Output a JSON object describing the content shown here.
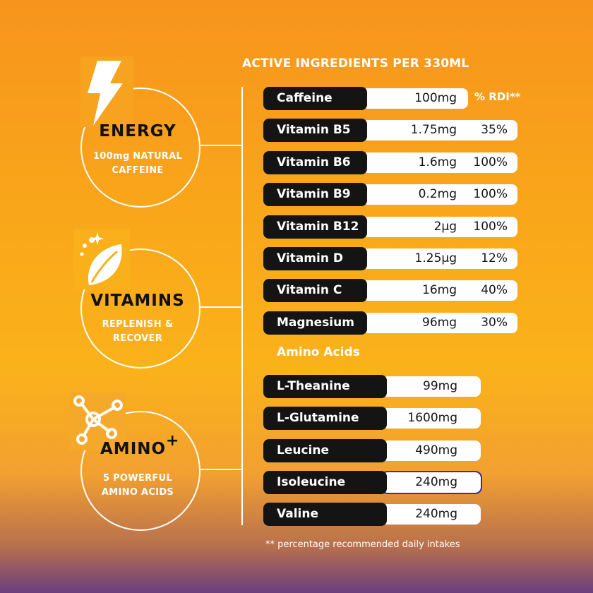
{
  "header": {
    "title": "ACTIVE INGREDIENTS PER 330ML",
    "rdi_label": "% RDI**"
  },
  "features": [
    {
      "title": "ENERGY",
      "subtitle_line1": "100mg NATURAL",
      "subtitle_line2": "CAFFEINE",
      "icon": "lightning-bolt-icon"
    },
    {
      "title": "VITAMINS",
      "subtitle_line1": "REPLENISH &",
      "subtitle_line2": "RECOVER",
      "icon": "leaf-sparkle-icon"
    },
    {
      "title": "AMINO",
      "title_suffix": "+",
      "subtitle_line1": "5 POWERFUL",
      "subtitle_line2": "AMINO ACIDS",
      "icon": "molecule-icon"
    }
  ],
  "ingredients": [
    {
      "name": "Caffeine",
      "amount": "100mg",
      "rdi": ""
    },
    {
      "name": "Vitamin B5",
      "amount": "1.75mg",
      "rdi": "35%"
    },
    {
      "name": "Vitamin B6",
      "amount": "1.6mg",
      "rdi": "100%"
    },
    {
      "name": "Vitamin B9",
      "amount": "0.2mg",
      "rdi": "100%"
    },
    {
      "name": "Vitamin B12",
      "amount": "2μg",
      "rdi": "100%"
    },
    {
      "name": "Vitamin D",
      "amount": "1.25μg",
      "rdi": "12%"
    },
    {
      "name": "Vitamin C",
      "amount": "16mg",
      "rdi": "40%"
    },
    {
      "name": "Magnesium",
      "amount": "96mg",
      "rdi": "30%"
    }
  ],
  "amino_heading": "Amino Acids",
  "amino_acids": [
    {
      "name": "L-Theanine",
      "amount": "99mg"
    },
    {
      "name": "L-Glutamine",
      "amount": "1600mg"
    },
    {
      "name": "Leucine",
      "amount": "490mg"
    },
    {
      "name": "Isoleucine",
      "amount": "240mg"
    },
    {
      "name": "Valine",
      "amount": "240mg"
    }
  ],
  "footnote": "** percentage recommended daily intakes",
  "colors": {
    "accent_dark": "#141414",
    "text_light": "#ffffff",
    "bg_top": "#f7941d",
    "bg_bottom": "#6b3e7e"
  }
}
